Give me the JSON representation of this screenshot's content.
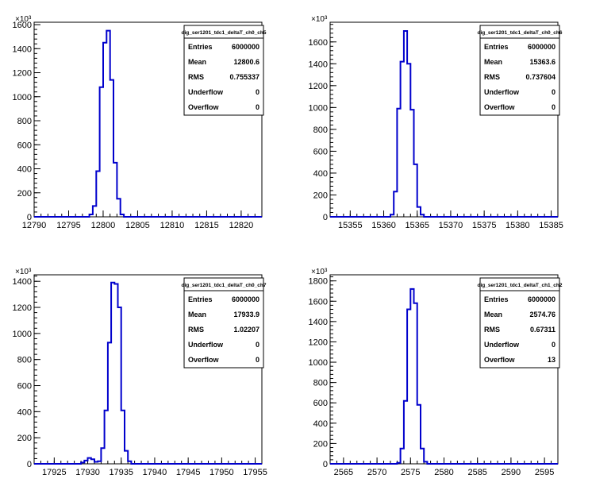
{
  "chart_data": [
    {
      "type": "histogram",
      "title": "",
      "multiplier": "×10³",
      "xlim": [
        12790,
        12823
      ],
      "ylim": [
        0,
        1620
      ],
      "xticks": [
        12790,
        12795,
        12800,
        12805,
        12810,
        12815,
        12820
      ],
      "yticks": [
        0,
        200,
        400,
        600,
        800,
        1000,
        1200,
        1400,
        1600
      ],
      "bin_width": 0.5,
      "x_start": 12798.0,
      "values": [
        20,
        90,
        380,
        1080,
        1450,
        1550,
        1140,
        450,
        150,
        20
      ],
      "stats": {
        "name": "dig_ser1201_tdc1_deltaT_ch0_ch5",
        "rows": [
          {
            "label": "Entries",
            "value": "6000000"
          },
          {
            "label": "Mean",
            "value": "12800.6"
          },
          {
            "label": "RMS",
            "value": "0.755337"
          },
          {
            "label": "Underflow",
            "value": "0"
          },
          {
            "label": "Overflow",
            "value": "0"
          }
        ]
      },
      "line_color": "#0000cc"
    },
    {
      "type": "histogram",
      "title": "",
      "multiplier": "×10³",
      "xlim": [
        15352,
        15386
      ],
      "ylim": [
        0,
        1780
      ],
      "xticks": [
        15355,
        15360,
        15365,
        15370,
        15375,
        15380,
        15385
      ],
      "yticks": [
        0,
        200,
        400,
        600,
        800,
        1000,
        1200,
        1400,
        1600
      ],
      "bin_width": 0.5,
      "x_start": 15361.0,
      "values": [
        20,
        230,
        990,
        1420,
        1700,
        1400,
        980,
        480,
        90,
        20
      ],
      "stats": {
        "name": "dig_ser1201_tdc1_deltaT_ch0_ch6",
        "rows": [
          {
            "label": "Entries",
            "value": "6000000"
          },
          {
            "label": "Mean",
            "value": "15363.6"
          },
          {
            "label": "RMS",
            "value": "0.737604"
          },
          {
            "label": "Underflow",
            "value": "0"
          },
          {
            "label": "Overflow",
            "value": "0"
          }
        ]
      },
      "line_color": "#0000cc"
    },
    {
      "type": "histogram",
      "title": "",
      "multiplier": "×10³",
      "xlim": [
        17922,
        17956
      ],
      "ylim": [
        0,
        1450
      ],
      "xticks": [
        17925,
        17930,
        17935,
        17940,
        17945,
        17950,
        17955
      ],
      "yticks": [
        0,
        200,
        400,
        600,
        800,
        1000,
        1200,
        1400
      ],
      "bin_width": 0.5,
      "x_start": 17929.0,
      "values": [
        10,
        25,
        45,
        35,
        15,
        20,
        120,
        410,
        930,
        1390,
        1380,
        1200,
        410,
        100,
        20
      ],
      "stats": {
        "name": "dig_ser1201_tdc1_deltaT_ch0_ch7",
        "rows": [
          {
            "label": "Entries",
            "value": "6000000"
          },
          {
            "label": "Mean",
            "value": "17933.9"
          },
          {
            "label": "RMS",
            "value": "1.02207"
          },
          {
            "label": "Underflow",
            "value": "0"
          },
          {
            "label": "Overflow",
            "value": "0"
          }
        ]
      },
      "line_color": "#0000cc"
    },
    {
      "type": "histogram",
      "title": "",
      "multiplier": "×10³",
      "xlim": [
        2563,
        2597
      ],
      "ylim": [
        0,
        1860
      ],
      "xticks": [
        2565,
        2570,
        2575,
        2580,
        2585,
        2590,
        2595
      ],
      "yticks": [
        0,
        200,
        400,
        600,
        800,
        1000,
        1200,
        1400,
        1600,
        1800
      ],
      "bin_width": 0.5,
      "x_start": 2573.0,
      "values": [
        10,
        150,
        620,
        1520,
        1720,
        1580,
        580,
        150,
        20
      ],
      "stats": {
        "name": "dig_ser1201_tdc1_deltaT_ch1_ch2",
        "rows": [
          {
            "label": "Entries",
            "value": "6000000"
          },
          {
            "label": "Mean",
            "value": "2574.76"
          },
          {
            "label": "RMS",
            "value": "0.67311"
          },
          {
            "label": "Underflow",
            "value": "0"
          },
          {
            "label": "Overflow",
            "value": "13"
          }
        ]
      },
      "line_color": "#0000cc"
    }
  ]
}
